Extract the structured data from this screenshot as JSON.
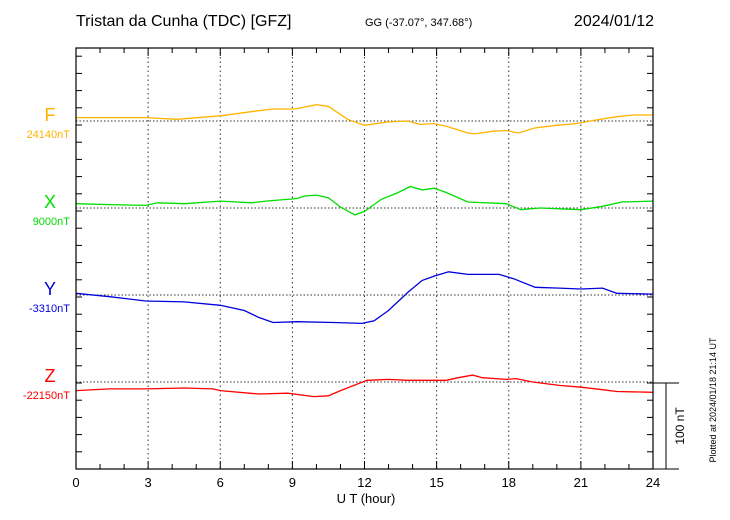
{
  "header": {
    "station": "Tristan da Cunha (TDC)  [GFZ]",
    "coords": "GG (-37.07°, 347.68°)",
    "date": "2024/01/12"
  },
  "footer": {
    "plotted": "Plotted at 2024/01/18 21:14 UT",
    "scale_label": "100 nT"
  },
  "chart_data": {
    "type": "line",
    "title": "Tristan da Cunha (TDC)  [GFZ]",
    "xlabel": "U T (hour)",
    "xlim": [
      0,
      24
    ],
    "xticks": [
      "0",
      "3",
      "6",
      "9",
      "12",
      "15",
      "18",
      "21",
      "24"
    ],
    "grid": "dotted vertical every 3 h, dotted baseline per component",
    "scale_bar_nT": 100,
    "units_note": "each series given as [hour, nT offset from baseline]",
    "series": [
      {
        "name": "F",
        "baseline_label": "24140nT",
        "color": "#ffb300",
        "points": [
          [
            0,
            4
          ],
          [
            2.9,
            4
          ],
          [
            4.2,
            2
          ],
          [
            6,
            6
          ],
          [
            7.6,
            12
          ],
          [
            8.2,
            14
          ],
          [
            9.1,
            14
          ],
          [
            10,
            19
          ],
          [
            10.5,
            17
          ],
          [
            11.3,
            2
          ],
          [
            12,
            -5
          ],
          [
            13,
            -1
          ],
          [
            13.8,
            0
          ],
          [
            14.3,
            -4
          ],
          [
            14.9,
            -3
          ],
          [
            15.4,
            -6
          ],
          [
            16.3,
            -14
          ],
          [
            16.6,
            -15
          ],
          [
            17.3,
            -12
          ],
          [
            17.9,
            -11
          ],
          [
            18.4,
            -14
          ],
          [
            19.1,
            -8
          ],
          [
            20,
            -5
          ],
          [
            20.8,
            -3
          ],
          [
            21.6,
            1
          ],
          [
            22.5,
            5
          ],
          [
            23.2,
            7
          ],
          [
            24,
            7
          ]
        ]
      },
      {
        "name": "X",
        "baseline_label": "9000nT",
        "color": "#00dd00",
        "points": [
          [
            0,
            5
          ],
          [
            1.4,
            4
          ],
          [
            2.9,
            3
          ],
          [
            3.4,
            6
          ],
          [
            4.5,
            5
          ],
          [
            6,
            8
          ],
          [
            7.3,
            6
          ],
          [
            7.9,
            8
          ],
          [
            9.2,
            11
          ],
          [
            9.5,
            14
          ],
          [
            10,
            15
          ],
          [
            10.5,
            12
          ],
          [
            11,
            1
          ],
          [
            11.6,
            -8
          ],
          [
            12,
            -4
          ],
          [
            12.7,
            10
          ],
          [
            13.4,
            18
          ],
          [
            13.9,
            25
          ],
          [
            14.4,
            21
          ],
          [
            14.9,
            23
          ],
          [
            15.4,
            18
          ],
          [
            16.3,
            7
          ],
          [
            17.9,
            5
          ],
          [
            18.5,
            -2
          ],
          [
            19.3,
            0
          ],
          [
            21,
            -2
          ],
          [
            21.9,
            2
          ],
          [
            22.7,
            7
          ],
          [
            24,
            8
          ]
        ]
      },
      {
        "name": "Y",
        "baseline_label": "-3310nT",
        "color": "#0000dd",
        "points": [
          [
            0,
            2
          ],
          [
            1.4,
            -2
          ],
          [
            2.9,
            -7
          ],
          [
            4.5,
            -8
          ],
          [
            6,
            -12
          ],
          [
            7,
            -18
          ],
          [
            7.6,
            -26
          ],
          [
            8.2,
            -32
          ],
          [
            9.2,
            -31
          ],
          [
            10.7,
            -32
          ],
          [
            11.9,
            -33
          ],
          [
            12.4,
            -30
          ],
          [
            13,
            -18
          ],
          [
            13.8,
            3
          ],
          [
            14.4,
            17
          ],
          [
            14.9,
            22
          ],
          [
            15.5,
            27
          ],
          [
            16.3,
            24
          ],
          [
            17.6,
            24
          ],
          [
            18.2,
            19
          ],
          [
            19.1,
            9
          ],
          [
            20.1,
            8
          ],
          [
            21,
            7
          ],
          [
            21.9,
            8
          ],
          [
            22.5,
            2
          ],
          [
            24,
            1
          ]
        ]
      },
      {
        "name": "Z",
        "baseline_label": "-22150nT",
        "color": "#ff0000",
        "points": [
          [
            0,
            -10
          ],
          [
            1.4,
            -8
          ],
          [
            2.9,
            -8
          ],
          [
            4.5,
            -7
          ],
          [
            5.7,
            -8
          ],
          [
            6,
            -10
          ],
          [
            7.6,
            -14
          ],
          [
            8.8,
            -13
          ],
          [
            9.9,
            -17
          ],
          [
            10.5,
            -16
          ],
          [
            11,
            -10
          ],
          [
            12.1,
            2
          ],
          [
            13,
            3
          ],
          [
            13.8,
            2
          ],
          [
            14.9,
            2
          ],
          [
            15.4,
            2
          ],
          [
            15.9,
            5
          ],
          [
            16.5,
            8
          ],
          [
            16.9,
            5
          ],
          [
            17.9,
            3
          ],
          [
            18.3,
            4
          ],
          [
            19,
            0
          ],
          [
            20.1,
            -4
          ],
          [
            21,
            -6
          ],
          [
            21.9,
            -9
          ],
          [
            22.5,
            -11
          ],
          [
            24,
            -12
          ]
        ]
      }
    ]
  }
}
